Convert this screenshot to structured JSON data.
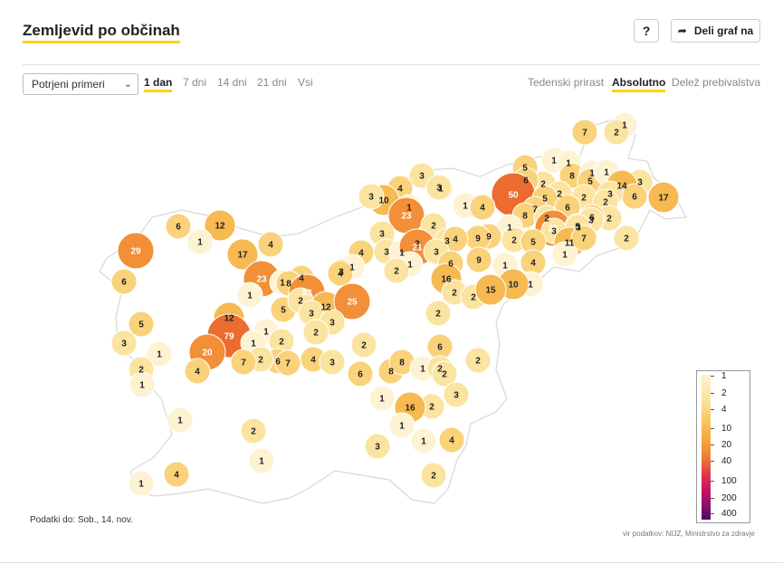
{
  "header": {
    "title": "Zemljevid po občinah",
    "help_label": "?",
    "share_label": "Deli graf na"
  },
  "controls": {
    "metric_select": "Potrjeni primeri",
    "periods": [
      "1 dan",
      "7 dni",
      "14 dni",
      "21 dni",
      "Vsi"
    ],
    "active_period": "1 dan",
    "modes": [
      "Tedenski prirast",
      "Absolutno",
      "Delež prebivalstva"
    ],
    "active_mode": "Absolutno"
  },
  "map": {
    "labels": [
      "7",
      "1",
      "2",
      "1",
      "5",
      "1",
      "8",
      "1",
      "5",
      "1",
      "3",
      "2",
      "6",
      "2",
      "14",
      "6",
      "3",
      "50",
      "5",
      "2",
      "2",
      "6",
      "17",
      "1",
      "7",
      "8",
      "2",
      "2",
      "6",
      "3",
      "1",
      "3",
      "4",
      "10",
      "1",
      "23",
      "4",
      "3",
      "1",
      "28",
      "5",
      "3",
      "9",
      "2",
      "3",
      "3",
      "5",
      "12",
      "11",
      "7",
      "2",
      "6",
      "29",
      "1",
      "2",
      "3",
      "3",
      "9",
      "17",
      "3",
      "4",
      "1",
      "4",
      "3",
      "4",
      "21",
      "9",
      "1",
      "3",
      "4",
      "6",
      "1",
      "1",
      "3",
      "1",
      "2",
      "6",
      "23",
      "4",
      "1",
      "16",
      "1",
      "2",
      "10",
      "1",
      "8",
      "4",
      "33",
      "2",
      "15",
      "12",
      "25",
      "5",
      "2",
      "3",
      "2",
      "12",
      "5",
      "3",
      "2",
      "79",
      "1",
      "2",
      "2",
      "3",
      "6",
      "1",
      "20",
      "1",
      "6",
      "2",
      "2",
      "4",
      "7",
      "7",
      "4",
      "3",
      "6",
      "8",
      "8",
      "1",
      "2",
      "1",
      "2",
      "2",
      "1",
      "2",
      "16",
      "1",
      "3",
      "1",
      "2",
      "3",
      "4",
      "1",
      "1",
      "2",
      "4",
      "1",
      "1"
    ],
    "colors": {
      "1": "#fdf3d3",
      "2": "#fbe3a0",
      "4": "#f9d27a",
      "10": "#f7b952",
      "20": "#f28f38",
      "40": "#ec6b2e",
      "100": "#e0174a"
    }
  },
  "legend": {
    "ticks": [
      "1",
      "2",
      "4",
      "10",
      "20",
      "40",
      "100",
      "200",
      "400"
    ]
  },
  "footer": {
    "data_until": "Podatki do: Sob., 14. nov.",
    "source": "vir podatkov: NIJZ, Ministrstvo za zdravje"
  }
}
